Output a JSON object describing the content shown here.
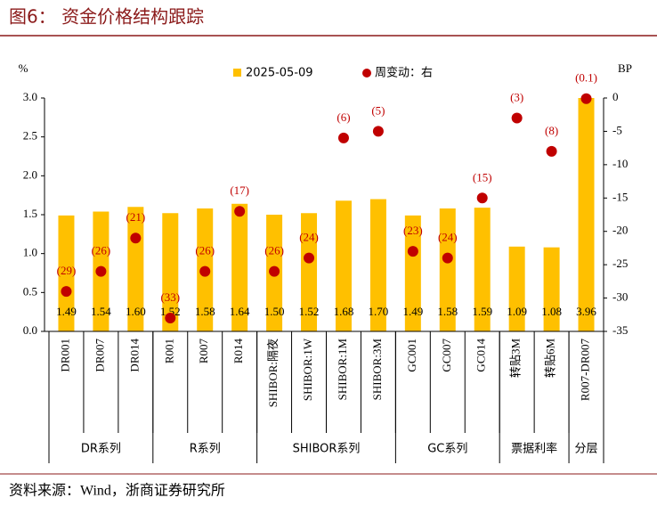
{
  "title": "图6：  资金价格结构跟踪",
  "source": "资料来源：Wind，浙商证券研究所",
  "chart_data": {
    "type": "bar-dot",
    "y_label": "%",
    "y2_label": "BP",
    "categories": [
      "DR001",
      "DR007",
      "DR014",
      "R001",
      "R007",
      "R014",
      "SHIBOR:隔夜",
      "SHIBOR:1W",
      "SHIBOR:1M",
      "SHIBOR:3M",
      "GC001",
      "GC007",
      "GC014",
      "转贴3M",
      "转贴6M",
      "R007-DR007"
    ],
    "groups": [
      {
        "name": "DR系列",
        "span": 3
      },
      {
        "name": "R系列",
        "span": 3
      },
      {
        "name": "SHIBOR系列",
        "span": 4
      },
      {
        "name": "GC系列",
        "span": 3
      },
      {
        "name": "票据利率",
        "span": 2
      },
      {
        "name": "分层",
        "span": 1
      }
    ],
    "series": [
      {
        "name": "2025-05-09",
        "color": "#ffc000",
        "marker": "bar",
        "values": [
          1.49,
          1.54,
          1.6,
          1.52,
          1.58,
          1.64,
          1.5,
          1.52,
          1.68,
          1.7,
          1.49,
          1.58,
          1.59,
          1.09,
          1.08,
          3.96
        ],
        "value_labels": [
          "1.49",
          "1.54",
          "1.60",
          "1.52",
          "1.58",
          "1.64",
          "1.50",
          "1.52",
          "1.68",
          "1.70",
          "1.49",
          "1.58",
          "1.59",
          "1.09",
          "1.08",
          "3.96"
        ]
      },
      {
        "name": "周变动：右",
        "color": "#c00000",
        "marker": "dot",
        "axis": "y2",
        "values": [
          -29,
          -26,
          -21,
          -33,
          -26,
          -17,
          -26,
          -24,
          -6,
          -5,
          -23,
          -24,
          -15,
          -3,
          -8,
          -0.1
        ],
        "value_labels": [
          "(29)",
          "(26)",
          "(21)",
          "(33)",
          "(26)",
          "(17)",
          "(26)",
          "(24)",
          "(6)",
          "(5)",
          "(23)",
          "(24)",
          "(15)",
          "(3)",
          "(8)",
          "(0.1)"
        ]
      }
    ],
    "ylim": [
      0,
      3.0
    ],
    "yticks": [
      {
        "value": 0,
        "label": "0.0"
      },
      {
        "value": 0.5,
        "label": "0.5"
      },
      {
        "value": 1,
        "label": "1.0"
      },
      {
        "value": 1.5,
        "label": "1.5"
      },
      {
        "value": 2,
        "label": "2.0"
      },
      {
        "value": 2.5,
        "label": "2.5"
      },
      {
        "value": 3,
        "label": "3.0"
      }
    ],
    "y2lim": [
      -35,
      0
    ],
    "y2ticks": [
      0,
      -5,
      -10,
      -15,
      -20,
      -25,
      -30,
      -35
    ]
  }
}
